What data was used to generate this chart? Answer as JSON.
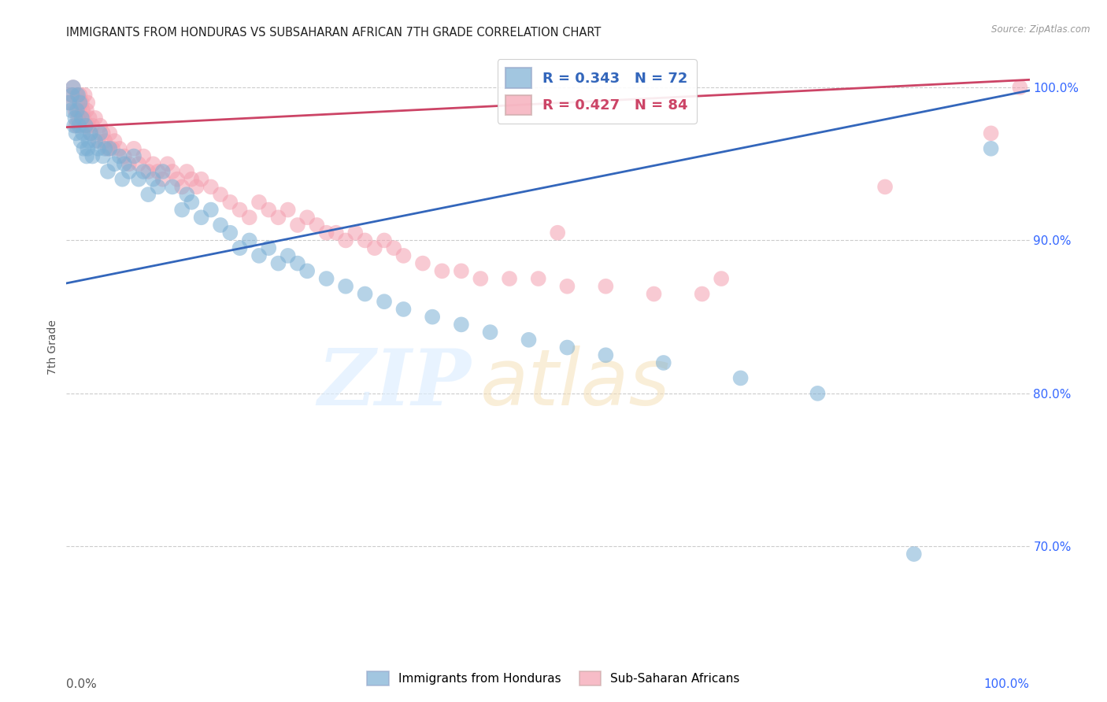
{
  "title": "IMMIGRANTS FROM HONDURAS VS SUBSAHARAN AFRICAN 7TH GRADE CORRELATION CHART",
  "source": "Source: ZipAtlas.com",
  "ylabel": "7th Grade",
  "legend_blue_label": "Immigrants from Honduras",
  "legend_pink_label": "Sub-Saharan Africans",
  "r_blue": 0.343,
  "n_blue": 72,
  "r_pink": 0.427,
  "n_pink": 84,
  "blue_color": "#7BAFD4",
  "pink_color": "#F4A0B0",
  "blue_line_color": "#3366BB",
  "pink_line_color": "#CC4466",
  "xlim": [
    0.0,
    1.0
  ],
  "ylim": [
    0.635,
    1.025
  ],
  "yticks": [
    0.7,
    0.8,
    0.9,
    1.0
  ],
  "ytick_labels": [
    "70.0%",
    "80.0%",
    "90.0%",
    "100.0%"
  ],
  "blue_scatter_x": [
    0.003,
    0.005,
    0.006,
    0.007,
    0.008,
    0.009,
    0.01,
    0.011,
    0.012,
    0.013,
    0.014,
    0.015,
    0.016,
    0.017,
    0.018,
    0.02,
    0.021,
    0.022,
    0.023,
    0.025,
    0.027,
    0.03,
    0.033,
    0.035,
    0.038,
    0.04,
    0.043,
    0.045,
    0.05,
    0.055,
    0.058,
    0.06,
    0.065,
    0.07,
    0.075,
    0.08,
    0.085,
    0.09,
    0.095,
    0.1,
    0.11,
    0.12,
    0.125,
    0.13,
    0.14,
    0.15,
    0.16,
    0.17,
    0.18,
    0.19,
    0.2,
    0.21,
    0.22,
    0.23,
    0.24,
    0.25,
    0.27,
    0.29,
    0.31,
    0.33,
    0.35,
    0.38,
    0.41,
    0.44,
    0.48,
    0.52,
    0.56,
    0.62,
    0.7,
    0.78,
    0.88,
    0.96
  ],
  "blue_scatter_y": [
    0.99,
    0.985,
    0.995,
    1.0,
    0.975,
    0.98,
    0.97,
    0.985,
    0.995,
    0.975,
    0.99,
    0.965,
    0.98,
    0.97,
    0.96,
    0.975,
    0.955,
    0.96,
    0.965,
    0.97,
    0.955,
    0.965,
    0.96,
    0.97,
    0.955,
    0.96,
    0.945,
    0.96,
    0.95,
    0.955,
    0.94,
    0.95,
    0.945,
    0.955,
    0.94,
    0.945,
    0.93,
    0.94,
    0.935,
    0.945,
    0.935,
    0.92,
    0.93,
    0.925,
    0.915,
    0.92,
    0.91,
    0.905,
    0.895,
    0.9,
    0.89,
    0.895,
    0.885,
    0.89,
    0.885,
    0.88,
    0.875,
    0.87,
    0.865,
    0.86,
    0.855,
    0.85,
    0.845,
    0.84,
    0.835,
    0.83,
    0.825,
    0.82,
    0.81,
    0.8,
    0.695,
    0.96
  ],
  "pink_scatter_x": [
    0.003,
    0.005,
    0.007,
    0.009,
    0.01,
    0.011,
    0.012,
    0.013,
    0.014,
    0.015,
    0.016,
    0.017,
    0.018,
    0.019,
    0.02,
    0.021,
    0.022,
    0.023,
    0.024,
    0.025,
    0.027,
    0.03,
    0.033,
    0.035,
    0.038,
    0.04,
    0.043,
    0.045,
    0.048,
    0.05,
    0.055,
    0.06,
    0.065,
    0.07,
    0.075,
    0.08,
    0.085,
    0.09,
    0.095,
    0.1,
    0.105,
    0.11,
    0.115,
    0.12,
    0.125,
    0.13,
    0.135,
    0.14,
    0.15,
    0.16,
    0.17,
    0.18,
    0.19,
    0.2,
    0.21,
    0.22,
    0.23,
    0.24,
    0.25,
    0.26,
    0.27,
    0.28,
    0.29,
    0.3,
    0.31,
    0.32,
    0.33,
    0.34,
    0.35,
    0.37,
    0.39,
    0.41,
    0.43,
    0.46,
    0.49,
    0.52,
    0.51,
    0.56,
    0.61,
    0.66,
    0.68,
    0.85,
    0.96,
    0.99
  ],
  "pink_scatter_y": [
    0.99,
    0.995,
    1.0,
    0.985,
    0.975,
    0.995,
    0.98,
    0.985,
    0.995,
    0.975,
    0.99,
    0.985,
    0.98,
    0.995,
    0.975,
    0.985,
    0.99,
    0.975,
    0.98,
    0.97,
    0.975,
    0.98,
    0.965,
    0.975,
    0.97,
    0.965,
    0.96,
    0.97,
    0.96,
    0.965,
    0.96,
    0.955,
    0.95,
    0.96,
    0.95,
    0.955,
    0.945,
    0.95,
    0.945,
    0.94,
    0.95,
    0.945,
    0.94,
    0.935,
    0.945,
    0.94,
    0.935,
    0.94,
    0.935,
    0.93,
    0.925,
    0.92,
    0.915,
    0.925,
    0.92,
    0.915,
    0.92,
    0.91,
    0.915,
    0.91,
    0.905,
    0.905,
    0.9,
    0.905,
    0.9,
    0.895,
    0.9,
    0.895,
    0.89,
    0.885,
    0.88,
    0.88,
    0.875,
    0.875,
    0.875,
    0.87,
    0.905,
    0.87,
    0.865,
    0.865,
    0.875,
    0.935,
    0.97,
    1.0
  ],
  "blue_trendline_x": [
    0.0,
    1.0
  ],
  "blue_trendline_y_start": 0.872,
  "blue_trendline_y_end": 0.998,
  "pink_trendline_x": [
    0.0,
    1.0
  ],
  "pink_trendline_y_start": 0.974,
  "pink_trendline_y_end": 1.005
}
